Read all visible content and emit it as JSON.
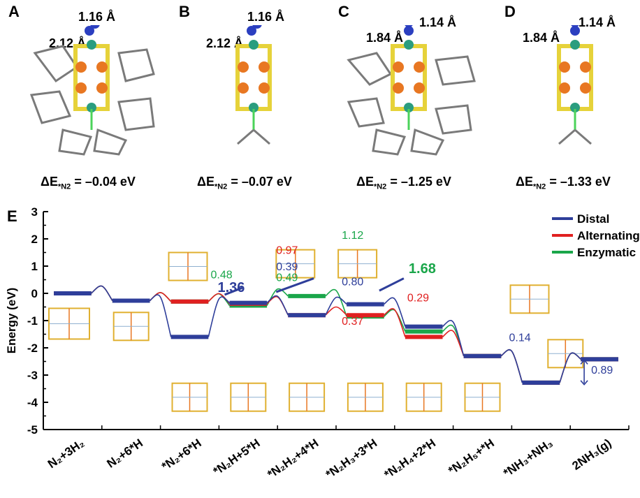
{
  "panels": [
    {
      "letter": "A",
      "bond_top": "1.16 Å",
      "bond_side": "2.12 Å",
      "energy_prefix": "ΔE",
      "energy_sub": "*N2",
      "energy_value": "= –0.04 eV"
    },
    {
      "letter": "B",
      "bond_top": "1.16 Å",
      "bond_side": "2.12 Å",
      "energy_prefix": "ΔE",
      "energy_sub": "*N2",
      "energy_value": "= –0.07 eV"
    },
    {
      "letter": "C",
      "bond_top": "1.14 Å",
      "bond_side": "1.84 Å",
      "energy_prefix": "ΔE",
      "energy_sub": "*N2",
      "energy_value": "= –1.25 eV"
    },
    {
      "letter": "D",
      "bond_top": "1.14 Å",
      "bond_side": "1.84 Å",
      "energy_prefix": "ΔE",
      "energy_sub": "*N2",
      "energy_value": "= –1.33 eV"
    }
  ],
  "chart_data": {
    "type": "line",
    "panel_label": "E",
    "ylabel": "Energy (eV)",
    "ylim": [
      -5,
      3
    ],
    "yticks": [
      "3",
      "2",
      "1",
      "0",
      "-1",
      "-2",
      "-3",
      "-4",
      "-5"
    ],
    "categories": [
      "N₂+3H₂",
      "N₂+6*H",
      "*N₂+6*H",
      "*N₂H+5*H",
      "*N₂H₂+4*H",
      "*N₂H₃+3*H",
      "*N₂H₄+2*H",
      "*N₂H₅+*H",
      "*NH₃+NH₃",
      "2NH₃(g)"
    ],
    "series": [
      {
        "name": "Distal",
        "color": "#2e3e9a",
        "values": [
          0.0,
          -0.27,
          -1.6,
          -0.35,
          -0.8,
          -0.4,
          -1.22,
          -2.3,
          -3.28,
          -2.42
        ]
      },
      {
        "name": "Alternating",
        "color": "#e02020",
        "values": [
          0.0,
          -0.27,
          -0.3,
          -0.38,
          -0.8,
          -0.8,
          -1.6,
          -2.3,
          -3.28,
          -2.42
        ]
      },
      {
        "name": "Enzymatic",
        "color": "#1aa64a",
        "values": [
          0.0,
          -0.27,
          -0.3,
          -0.45,
          -0.1,
          -0.85,
          -1.4,
          -2.3,
          -3.28,
          -2.42
        ]
      }
    ],
    "legend_position": "top-right",
    "annotations": [
      {
        "text": "0.48",
        "color": "#1aa64a"
      },
      {
        "text": "1.36",
        "color": "#2e3e9a"
      },
      {
        "text": "0.97",
        "color": "#e02020"
      },
      {
        "text": "0.39",
        "color": "#2e3e9a"
      },
      {
        "text": "0.49",
        "color": "#1aa64a"
      },
      {
        "text": "1.12",
        "color": "#1aa64a"
      },
      {
        "text": "0.80",
        "color": "#2e3e9a"
      },
      {
        "text": "1.68",
        "color": "#1aa64a"
      },
      {
        "text": "0.29",
        "color": "#e02020"
      },
      {
        "text": "0.37",
        "color": "#e02020"
      },
      {
        "text": "0.14",
        "color": "#2e3e9a"
      },
      {
        "text": "0.89",
        "color": "#2e3e9a"
      }
    ]
  }
}
